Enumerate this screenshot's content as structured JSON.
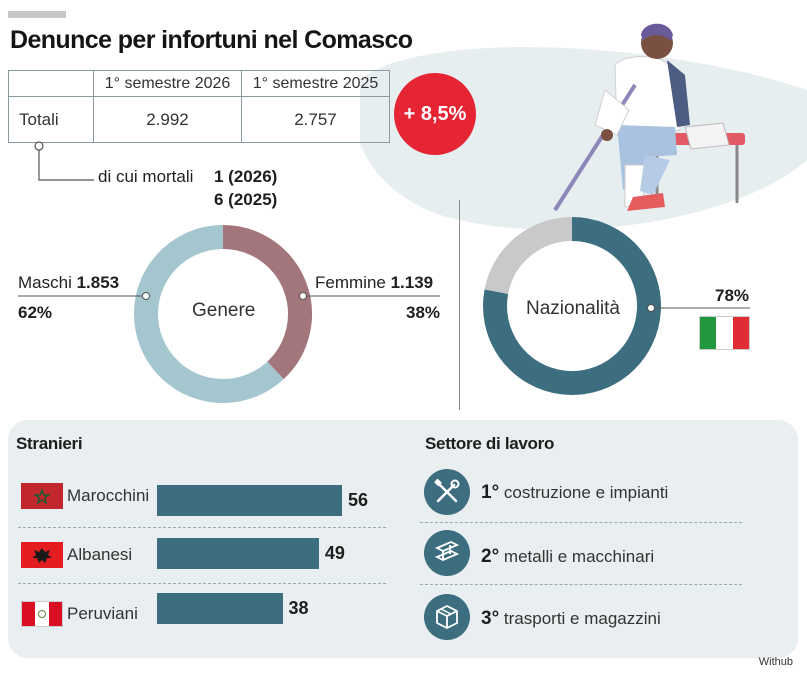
{
  "header": {
    "title": "Denunce per infortuni nel Comasco"
  },
  "table": {
    "col1": "1° semestre 2026",
    "col2": "1° semestre 2025",
    "row_label": "Totali",
    "v2026": "2.992",
    "v2025": "2.757"
  },
  "change_badge": "+ 8,5%",
  "fatal": {
    "label": "di cui mortali",
    "v2026": "1 (2026)",
    "v2025": "6 (2025)"
  },
  "gender": {
    "center": "Genere",
    "male_label": "Maschi",
    "male_value": "1.853",
    "male_pct": "62%",
    "female_label": "Femmine",
    "female_value": "1.139",
    "female_pct": "38%"
  },
  "nationality": {
    "center": "Nazionalità",
    "italian_pct": "78%"
  },
  "foreigners": {
    "title": "Stranieri",
    "items": [
      {
        "label": "Marocchini",
        "value": "56"
      },
      {
        "label": "Albanesi",
        "value": "49"
      },
      {
        "label": "Peruviani",
        "value": "38"
      }
    ]
  },
  "sectors": {
    "title": "Settore di lavoro",
    "items": [
      {
        "rank": "1°",
        "label": "costruzione e impianti",
        "icon": "tools-icon"
      },
      {
        "rank": "2°",
        "label": "metalli e macchinari",
        "icon": "metal-beam-icon"
      },
      {
        "rank": "3°",
        "label": "trasporti e magazzini",
        "icon": "package-icon"
      }
    ]
  },
  "credit": "Withub",
  "colors": {
    "teal": "#3d6e7f",
    "light_teal": "#a3c6cf",
    "rose": "#a3767c",
    "grey": "#c9c9c9",
    "red": "#e62534",
    "panel": "#e9eff0"
  },
  "chart_data": [
    {
      "type": "pie",
      "title": "Genere",
      "categories": [
        "Maschi",
        "Femmine"
      ],
      "values": [
        1853,
        1139
      ],
      "percentages": [
        62,
        38
      ]
    },
    {
      "type": "pie",
      "title": "Nazionalità",
      "categories": [
        "",
        ""
      ],
      "values": [
        78,
        22
      ]
    },
    {
      "type": "bar",
      "title": "Stranieri",
      "categories": [
        "Marocchini",
        "Albanesi",
        "Peruviani"
      ],
      "values": [
        56,
        49,
        38
      ]
    }
  ]
}
